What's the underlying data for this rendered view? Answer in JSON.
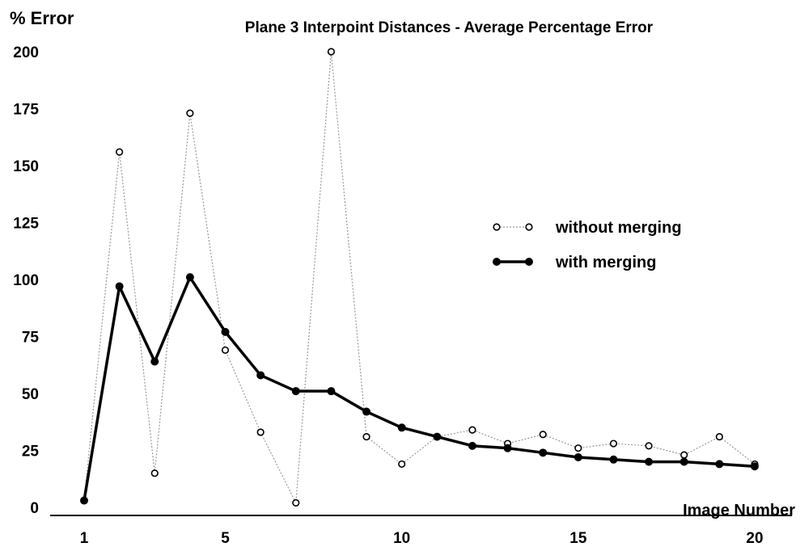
{
  "chart_data": {
    "type": "line",
    "title": "Plane 3 Interpoint Distances - Average Percentage Error",
    "ylabel": "% Error",
    "xlabel": "Image Number",
    "ylim": [
      0,
      200
    ],
    "xlim": [
      1,
      20
    ],
    "yticks": [
      0,
      25,
      50,
      75,
      100,
      125,
      150,
      175,
      200
    ],
    "xticks": [
      1,
      5,
      10,
      15,
      20
    ],
    "grid": false,
    "legend_position": "right",
    "x": [
      1,
      2,
      3,
      4,
      5,
      6,
      7,
      8,
      9,
      10,
      11,
      12,
      13,
      14,
      15,
      16,
      17,
      18,
      19,
      20
    ],
    "series": [
      {
        "name": "without merging",
        "style": "dotted-open-circles",
        "color": "#999999",
        "values": [
          3,
          156,
          15,
          173,
          69,
          33,
          2,
          200,
          31,
          19,
          31,
          34,
          28,
          32,
          26,
          28,
          27,
          23,
          31,
          19
        ]
      },
      {
        "name": "with merging",
        "style": "solid-filled-circles",
        "color": "#000000",
        "values": [
          3,
          97,
          64,
          101,
          77,
          58,
          51,
          51,
          42,
          35,
          31,
          27,
          26,
          24,
          22,
          21,
          20,
          20,
          19,
          18
        ]
      }
    ]
  }
}
